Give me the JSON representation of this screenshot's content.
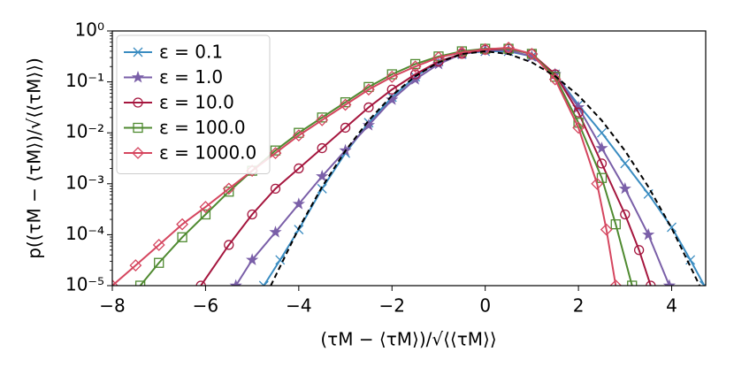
{
  "chart_data": {
    "type": "line",
    "xlabel": "(τM − ⟨τM⟩)/√⟨⟨τM⟩⟩",
    "ylabel": "p((τM − ⟨τM⟩)/√⟨⟨τM⟩⟩)",
    "log_y": true,
    "legend": "upper left",
    "xlim": [
      -8,
      4.73
    ],
    "ylim": [
      1e-05,
      1
    ],
    "xticks": [
      {
        "value": -8,
        "label": "−8"
      },
      {
        "value": -6,
        "label": "−6"
      },
      {
        "value": -4,
        "label": "−4"
      },
      {
        "value": -2,
        "label": "−2"
      },
      0,
      2,
      4
    ],
    "yticks": [
      {
        "value": 1e-05,
        "label": "10⁻⁵"
      },
      {
        "value": 0.0001,
        "label": "10⁻⁴"
      },
      {
        "value": 0.001,
        "label": "10⁻³"
      },
      {
        "value": 0.01,
        "label": "10⁻²"
      },
      {
        "value": 0.1,
        "label": "10⁻¹"
      },
      {
        "value": 1,
        "label": "10⁰"
      }
    ],
    "series": [
      {
        "name": "ε = 0.1",
        "color": "#3a8cc1",
        "marker": "x",
        "x": [
          -4.75,
          -4.4,
          -4,
          -3.5,
          -3,
          -2.5,
          -2,
          -1.5,
          -1,
          -0.5,
          0,
          0.5,
          1,
          1.5,
          2,
          2.5,
          3,
          3.5,
          4,
          4.4,
          4.7
        ],
        "values": [
          1e-05,
          3.2e-05,
          0.000126,
          0.0008,
          0.004,
          0.0158,
          0.05,
          0.126,
          0.251,
          0.355,
          0.398,
          0.398,
          0.316,
          0.141,
          0.0355,
          0.01,
          0.0025,
          0.00063,
          0.00014,
          3.2e-05,
          1e-05
        ]
      },
      {
        "name": "ε = 1.0",
        "color": "#7a5fa8",
        "marker": "star",
        "x": [
          -5.35,
          -5,
          -4.5,
          -4,
          -3.5,
          -3,
          -2.5,
          -2,
          -1.5,
          -1,
          -0.5,
          0,
          0.5,
          1,
          1.5,
          2,
          2.5,
          3,
          3.5,
          3.95
        ],
        "values": [
          1e-05,
          3.2e-05,
          0.000112,
          0.0004,
          0.0014,
          0.0045,
          0.0141,
          0.0447,
          0.112,
          0.224,
          0.355,
          0.417,
          0.417,
          0.316,
          0.141,
          0.0316,
          0.005,
          0.0008,
          0.0001,
          1e-05
        ]
      },
      {
        "name": "ε = 10.0",
        "color": "#a5163e",
        "marker": "circle",
        "x": [
          -6.1,
          -5.5,
          -5,
          -4.5,
          -4,
          -3.5,
          -3,
          -2.5,
          -2,
          -1.5,
          -1,
          -0.5,
          0,
          0.5,
          1,
          1.5,
          2,
          2.5,
          3,
          3.3,
          3.55
        ],
        "values": [
          1e-05,
          6.3e-05,
          0.00025,
          0.0008,
          0.002,
          0.005,
          0.0126,
          0.0316,
          0.0708,
          0.141,
          0.251,
          0.355,
          0.427,
          0.447,
          0.355,
          0.141,
          0.0251,
          0.0025,
          0.00025,
          5e-05,
          1e-05
        ]
      },
      {
        "name": "ε = 100.0",
        "color": "#4f8a30",
        "marker": "square",
        "x": [
          -7.4,
          -7,
          -6.5,
          -6,
          -5.5,
          -5,
          -4.5,
          -4,
          -3.5,
          -3,
          -2.5,
          -2,
          -1.5,
          -1,
          -0.5,
          0,
          0.5,
          1,
          1.5,
          2,
          2.5,
          2.8,
          3.15
        ],
        "values": [
          1e-05,
          2.8e-05,
          8.9e-05,
          0.00025,
          0.0007,
          0.0018,
          0.0045,
          0.01,
          0.02,
          0.0398,
          0.0794,
          0.141,
          0.224,
          0.316,
          0.398,
          0.447,
          0.447,
          0.355,
          0.126,
          0.0158,
          0.0013,
          0.00016,
          1e-05
        ]
      },
      {
        "name": "ε = 1000.0",
        "color": "#d5465f",
        "marker": "diamond",
        "x": [
          -8,
          -7.5,
          -7,
          -6.5,
          -6,
          -5.5,
          -5,
          -4.5,
          -4,
          -3.5,
          -3,
          -2.5,
          -2,
          -1.5,
          -1,
          -0.5,
          0,
          0.5,
          1,
          1.5,
          2,
          2.4,
          2.6,
          2.8
        ],
        "values": [
          1e-05,
          2.5e-05,
          6.3e-05,
          0.00016,
          0.00035,
          0.0008,
          0.0018,
          0.004,
          0.0089,
          0.0178,
          0.0355,
          0.0708,
          0.126,
          0.2,
          0.302,
          0.38,
          0.437,
          0.468,
          0.355,
          0.112,
          0.0126,
          0.001,
          0.000126,
          1e-05
        ]
      },
      {
        "color": "#000000",
        "dashed": true,
        "x": [
          -4.6,
          -4,
          -3.5,
          -3,
          -2.5,
          -2,
          -1.5,
          -1,
          -0.5,
          0,
          0.5,
          1,
          1.5,
          2,
          2.5,
          3,
          3.5,
          4,
          4.6
        ],
        "values": [
          1e-05,
          0.000134,
          0.00087,
          0.00443,
          0.0175,
          0.054,
          0.1295,
          0.242,
          0.352,
          0.399,
          0.352,
          0.242,
          0.1295,
          0.054,
          0.0175,
          0.00443,
          0.00087,
          0.000134,
          1e-05
        ]
      }
    ]
  }
}
